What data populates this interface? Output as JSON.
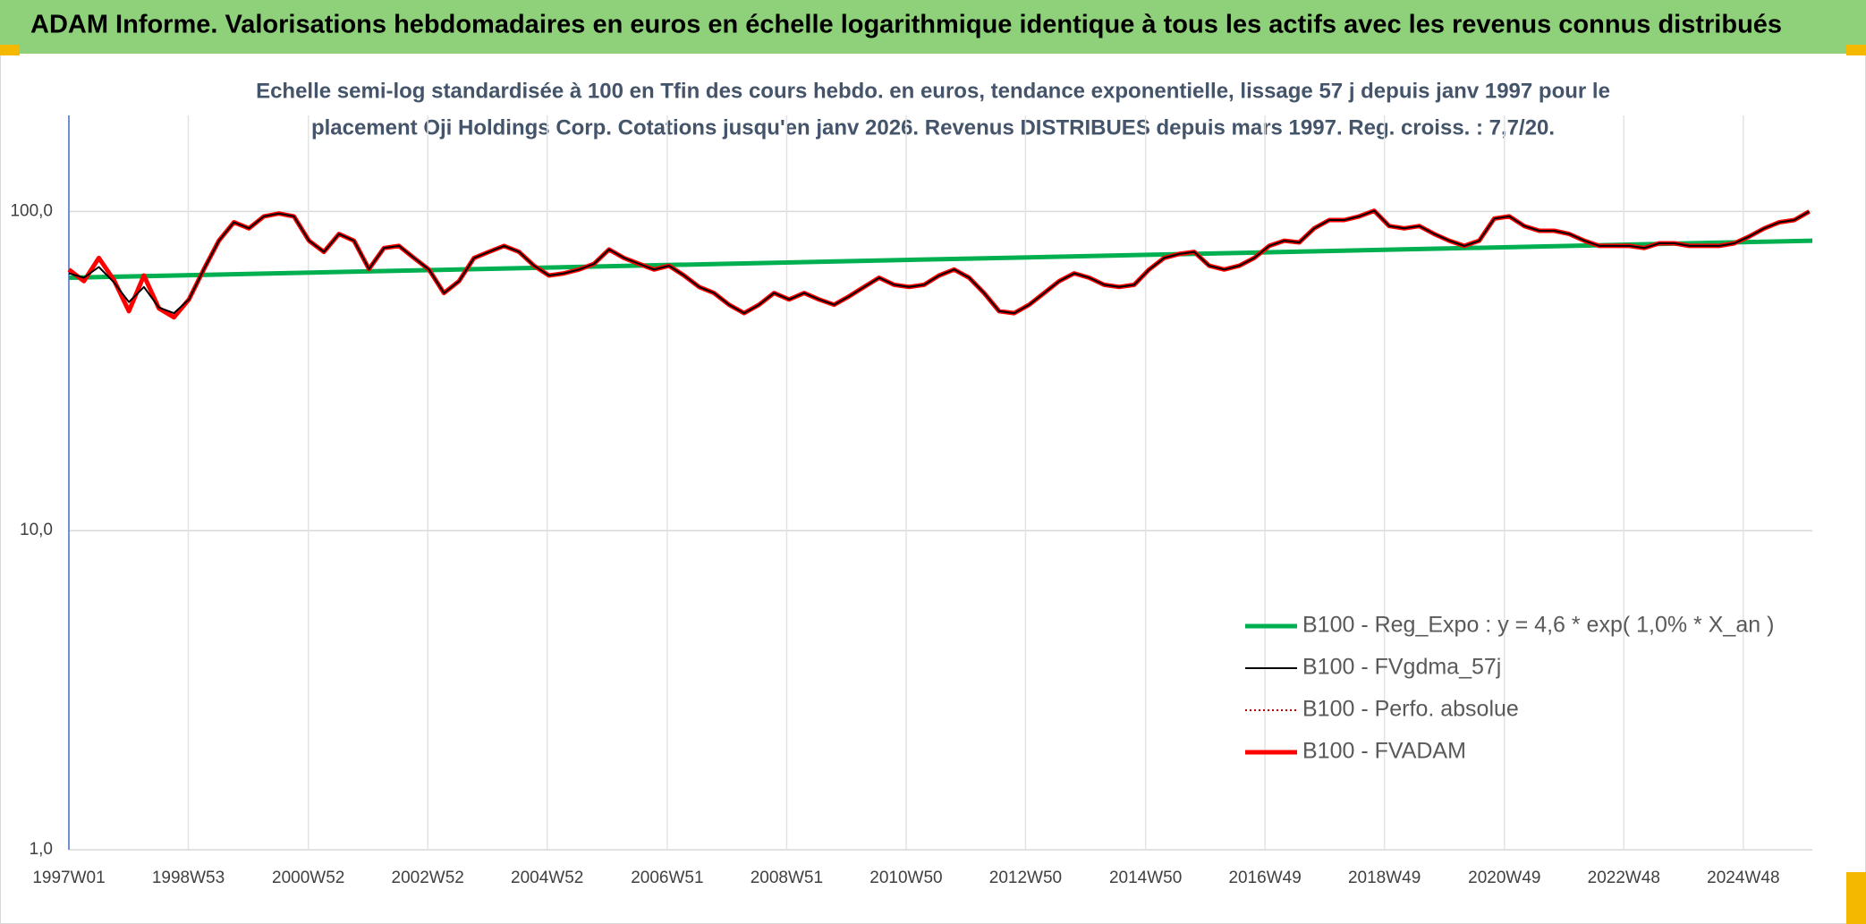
{
  "header": {
    "title": "ADAM Informe. Valorisations hebdomadaires en euros en échelle logarithmique identique à tous les actifs avec les revenus connus distribués"
  },
  "chart_data": {
    "type": "line",
    "subtitle": [
      "Echelle semi-log standardisée à 100 en Tfin des cours hebdo. en euros, tendance exponentielle, lissage 57 j depuis janv 1997 pour le",
      "placement Oji Holdings Corp. Cotations jusqu'en janv 2026. Revenus DISTRIBUES depuis mars 1997. Reg. croiss. : 7,7/20."
    ],
    "log_y": true,
    "grid": true,
    "legend": "lower-right",
    "ylim": [
      1,
      200
    ],
    "yticks": [
      {
        "value": 1,
        "label": "1,0"
      },
      {
        "value": 10,
        "label": "10,0"
      },
      {
        "value": 100,
        "label": "100,0"
      }
    ],
    "xlim": [
      1997,
      2026.05
    ],
    "xticks": [
      {
        "value": 1997,
        "label": "1997W01"
      },
      {
        "value": 1998.99,
        "label": "1998W53"
      },
      {
        "value": 2000.99,
        "label": "2000W52"
      },
      {
        "value": 2002.98,
        "label": "2002W52"
      },
      {
        "value": 2004.97,
        "label": "2004W52"
      },
      {
        "value": 2006.97,
        "label": "2006W51"
      },
      {
        "value": 2008.96,
        "label": "2008W51"
      },
      {
        "value": 2010.95,
        "label": "2010W50"
      },
      {
        "value": 2012.94,
        "label": "2012W50"
      },
      {
        "value": 2014.94,
        "label": "2014W50"
      },
      {
        "value": 2016.93,
        "label": "2016W49"
      },
      {
        "value": 2018.92,
        "label": "2018W49"
      },
      {
        "value": 2020.92,
        "label": "2020W49"
      },
      {
        "value": 2022.91,
        "label": "2022W48"
      },
      {
        "value": 2024.9,
        "label": "2024W48"
      }
    ],
    "x": [
      1997,
      1997.25,
      1997.5,
      1997.75,
      1998,
      1998.25,
      1998.5,
      1998.75,
      1999,
      1999.25,
      1999.5,
      1999.75,
      2000,
      2000.25,
      2000.5,
      2000.75,
      2001,
      2001.25,
      2001.5,
      2001.75,
      2002,
      2002.25,
      2002.5,
      2002.75,
      2003,
      2003.25,
      2003.5,
      2003.75,
      2004,
      2004.25,
      2004.5,
      2004.75,
      2005,
      2005.25,
      2005.5,
      2005.75,
      2006,
      2006.25,
      2006.5,
      2006.75,
      2007,
      2007.25,
      2007.5,
      2007.75,
      2008,
      2008.25,
      2008.5,
      2008.75,
      2009,
      2009.25,
      2009.5,
      2009.75,
      2010,
      2010.25,
      2010.5,
      2010.75,
      2011,
      2011.25,
      2011.5,
      2011.75,
      2012,
      2012.25,
      2012.5,
      2012.75,
      2013,
      2013.25,
      2013.5,
      2013.75,
      2014,
      2014.25,
      2014.5,
      2014.75,
      2015,
      2015.25,
      2015.5,
      2015.75,
      2016,
      2016.25,
      2016.5,
      2016.75,
      2017,
      2017.25,
      2017.5,
      2017.75,
      2018,
      2018.25,
      2018.5,
      2018.75,
      2019,
      2019.25,
      2019.5,
      2019.75,
      2020,
      2020.25,
      2020.5,
      2020.75,
      2021,
      2021.25,
      2021.5,
      2021.75,
      2022,
      2022.25,
      2022.5,
      2022.75,
      2023,
      2023.25,
      2023.5,
      2023.75,
      2024,
      2024.25,
      2024.5,
      2024.75,
      2025,
      2025.25,
      2025.5,
      2025.75,
      2026
    ],
    "series": [
      {
        "name": "B100 - Reg_Expo : y = 4,6 * exp( 1,0% *  X_an )",
        "color": "#00b050",
        "style": "thick",
        "x": [
          1997,
          2026.05
        ],
        "values": [
          62,
          81
        ]
      },
      {
        "name": "B100 - FVgdma_57j",
        "color": "#000000",
        "style": "thin",
        "values": [
          64,
          62,
          67,
          60,
          52,
          58,
          50,
          48,
          53,
          66,
          81,
          92.5,
          88.5,
          96.5,
          98.5,
          96.5,
          81,
          74.7,
          85,
          81,
          66,
          76.8,
          78,
          71.5,
          65.8,
          55.5,
          60.5,
          71.5,
          74.7,
          78,
          74.7,
          67.6,
          63,
          64,
          65.8,
          68.5,
          76,
          71.5,
          68.5,
          65.8,
          67.6,
          63,
          58,
          55.5,
          51,
          48,
          51,
          55.5,
          53,
          55.5,
          53,
          51,
          54.2,
          58,
          62,
          58.9,
          58,
          58.9,
          63,
          65.8,
          62,
          55.5,
          48.7,
          48,
          51,
          55.5,
          60.5,
          64,
          62,
          58.9,
          58,
          58.9,
          65.8,
          71.5,
          73.6,
          74.7,
          67.6,
          65.8,
          67.6,
          71.5,
          78,
          81,
          80,
          88.5,
          94,
          94,
          96.5,
          100.5,
          90,
          88.5,
          90,
          85,
          81,
          78,
          81,
          95,
          96.5,
          90,
          87,
          87,
          85,
          81,
          78,
          78,
          78,
          76.8,
          79.5,
          79.5,
          78,
          78,
          78,
          79.5,
          83.5,
          88.5,
          92.5,
          94,
          100
        ]
      },
      {
        "name": "B100 - Perfo. absolue",
        "color": "#c00000",
        "style": "dotted",
        "values": [
          65.8,
          60.5,
          71.5,
          61,
          48.7,
          63,
          49.7,
          46.6,
          53,
          66,
          81,
          92.5,
          88.5,
          96.5,
          98.5,
          96.5,
          81,
          74.7,
          85,
          81,
          66,
          76.8,
          78,
          71.5,
          65.8,
          55.5,
          60.5,
          71.5,
          74.7,
          78,
          74.7,
          67.6,
          63,
          64,
          65.8,
          68.5,
          76,
          71.5,
          68.5,
          65.8,
          67.6,
          63,
          58,
          55.5,
          51,
          48,
          51,
          55.5,
          53,
          55.5,
          53,
          51,
          54.2,
          58,
          62,
          58.9,
          58,
          58.9,
          63,
          65.8,
          62,
          55.5,
          48.7,
          48,
          51,
          55.5,
          60.5,
          64,
          62,
          58.9,
          58,
          58.9,
          65.8,
          71.5,
          73.6,
          74.7,
          67.6,
          65.8,
          67.6,
          71.5,
          78,
          81,
          80,
          88.5,
          94,
          94,
          96.5,
          100.5,
          90,
          88.5,
          90,
          85,
          81,
          78,
          81,
          95,
          96.5,
          90,
          87,
          87,
          85,
          81,
          78,
          78,
          78,
          76.8,
          79.5,
          79.5,
          78,
          78,
          78,
          79.5,
          83.5,
          88.5,
          92.5,
          94,
          100
        ]
      },
      {
        "name": "B100 - FVADAM",
        "color": "#ff0000",
        "style": "thick",
        "values": [
          65.8,
          60.5,
          71.5,
          61,
          48.7,
          63,
          49.7,
          46.6,
          53,
          66,
          81,
          92.5,
          88.5,
          96.5,
          98.5,
          96.5,
          81,
          74.7,
          85,
          81,
          66,
          76.8,
          78,
          71.5,
          65.8,
          55.5,
          60.5,
          71.5,
          74.7,
          78,
          74.7,
          67.6,
          63,
          64,
          65.8,
          68.5,
          76,
          71.5,
          68.5,
          65.8,
          67.6,
          63,
          58,
          55.5,
          51,
          48,
          51,
          55.5,
          53,
          55.5,
          53,
          51,
          54.2,
          58,
          62,
          58.9,
          58,
          58.9,
          63,
          65.8,
          62,
          55.5,
          48.7,
          48,
          51,
          55.5,
          60.5,
          64,
          62,
          58.9,
          58,
          58.9,
          65.8,
          71.5,
          73.6,
          74.7,
          67.6,
          65.8,
          67.6,
          71.5,
          78,
          81,
          80,
          88.5,
          94,
          94,
          96.5,
          100.5,
          90,
          88.5,
          90,
          85,
          81,
          78,
          81,
          95,
          96.5,
          90,
          87,
          87,
          85,
          81,
          78,
          78,
          78,
          76.8,
          79.5,
          79.5,
          78,
          78,
          78,
          79.5,
          83.5,
          88.5,
          92.5,
          94,
          100
        ]
      }
    ]
  }
}
